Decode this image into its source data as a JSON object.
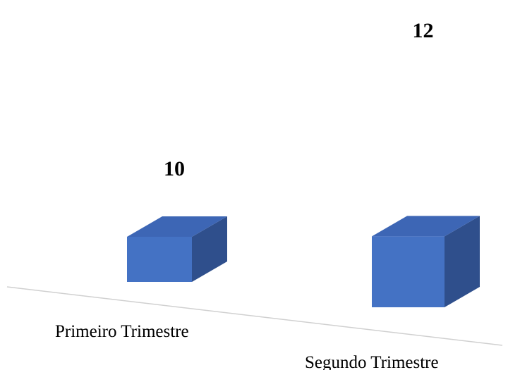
{
  "chart_data": {
    "type": "bar",
    "style": "3d-column",
    "categories": [
      "Primeiro Trimestre",
      "Segundo Trimestre"
    ],
    "values": [
      10,
      12
    ],
    "data_labels": [
      "10",
      "12"
    ],
    "title": "",
    "xlabel": "",
    "ylabel": "",
    "grid": false,
    "legend": "none",
    "colors": {
      "front": "#4472C4",
      "top": "#3D66B5",
      "side": "#2F4F8C",
      "floor": "#D0D0D0"
    }
  }
}
